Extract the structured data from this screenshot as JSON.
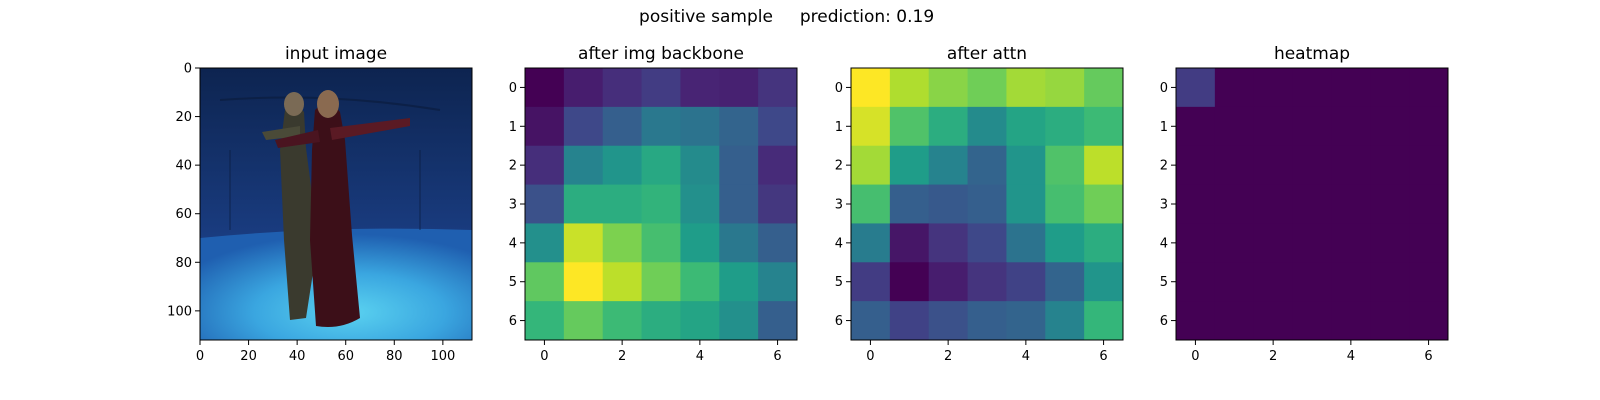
{
  "figure": {
    "title_left": "positive sample",
    "title_right": "prediction: 0.19"
  },
  "colors": {
    "viridis": [
      "#440154",
      "#482878",
      "#3e4989",
      "#31688e",
      "#26828e",
      "#1f9e89",
      "#35b779",
      "#6ece58",
      "#b5de2b",
      "#fde725"
    ]
  },
  "chart_data": [
    {
      "type": "image",
      "title": "input image",
      "xlim": [
        0,
        112
      ],
      "ylim": [
        112,
        0
      ],
      "xticks": [
        0,
        20,
        40,
        60,
        80,
        100
      ],
      "yticks": [
        0,
        20,
        40,
        60,
        80,
        100
      ],
      "description_hidden": true
    },
    {
      "type": "heatmap",
      "title": "after img backbone",
      "xticks": [
        0,
        2,
        4,
        6
      ],
      "yticks": [
        0,
        1,
        2,
        3,
        4,
        5,
        6
      ],
      "values": [
        [
          0.0,
          0.08,
          0.13,
          0.18,
          0.1,
          0.09,
          0.15
        ],
        [
          0.05,
          0.22,
          0.3,
          0.4,
          0.38,
          0.32,
          0.22
        ],
        [
          0.13,
          0.45,
          0.52,
          0.6,
          0.48,
          0.3,
          0.12
        ],
        [
          0.25,
          0.62,
          0.62,
          0.65,
          0.5,
          0.3,
          0.16
        ],
        [
          0.5,
          0.92,
          0.8,
          0.7,
          0.55,
          0.4,
          0.3
        ],
        [
          0.75,
          1.0,
          0.9,
          0.78,
          0.68,
          0.55,
          0.45
        ],
        [
          0.66,
          0.76,
          0.68,
          0.62,
          0.58,
          0.5,
          0.3
        ]
      ]
    },
    {
      "type": "heatmap",
      "title": "after attn",
      "xticks": [
        0,
        2,
        4,
        6
      ],
      "yticks": [
        0,
        1,
        2,
        3,
        4,
        5,
        6
      ],
      "values": [
        [
          1.0,
          0.88,
          0.82,
          0.78,
          0.86,
          0.84,
          0.76
        ],
        [
          0.94,
          0.72,
          0.62,
          0.48,
          0.58,
          0.62,
          0.68
        ],
        [
          0.86,
          0.55,
          0.45,
          0.32,
          0.52,
          0.72,
          0.9
        ],
        [
          0.7,
          0.3,
          0.28,
          0.3,
          0.52,
          0.7,
          0.78
        ],
        [
          0.42,
          0.06,
          0.15,
          0.22,
          0.38,
          0.55,
          0.62
        ],
        [
          0.18,
          0.0,
          0.08,
          0.15,
          0.2,
          0.32,
          0.52
        ],
        [
          0.3,
          0.2,
          0.25,
          0.3,
          0.32,
          0.45,
          0.66
        ]
      ]
    },
    {
      "type": "heatmap",
      "title": "heatmap",
      "xticks": [
        0,
        2,
        4,
        6
      ],
      "yticks": [
        0,
        1,
        2,
        3,
        4,
        5,
        6
      ],
      "values": [
        [
          0.18,
          0.0,
          0.0,
          0.0,
          0.0,
          0.0,
          0.0
        ],
        [
          0.0,
          0.0,
          0.0,
          0.0,
          0.0,
          0.0,
          0.0
        ],
        [
          0.0,
          0.0,
          0.0,
          0.0,
          0.0,
          0.0,
          0.0
        ],
        [
          0.0,
          0.0,
          0.0,
          0.0,
          0.0,
          0.0,
          0.0
        ],
        [
          0.0,
          0.0,
          0.0,
          0.0,
          0.0,
          0.0,
          0.0
        ],
        [
          0.0,
          0.0,
          0.0,
          0.0,
          0.0,
          0.0,
          0.0
        ],
        [
          0.0,
          0.0,
          0.0,
          0.0,
          0.0,
          0.0,
          0.0
        ]
      ]
    }
  ]
}
